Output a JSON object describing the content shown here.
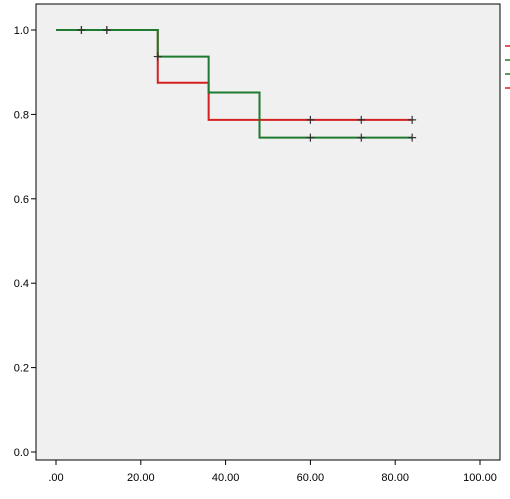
{
  "chart_data": {
    "type": "line",
    "subtype": "kaplan-meier-step",
    "title": "",
    "xlabel": "",
    "ylabel": "",
    "xlim": [
      0,
      100
    ],
    "ylim": [
      0,
      1.0
    ],
    "x_ticks": [
      0,
      20,
      40,
      60,
      80,
      100
    ],
    "x_tick_labels": [
      ".00",
      "20.00",
      "40.00",
      "60.00",
      "80.00",
      "100.00"
    ],
    "y_ticks": [
      0,
      0.2,
      0.4,
      0.6,
      0.8,
      1.0
    ],
    "y_tick_labels": [
      "0.0",
      "0.2",
      "0.4",
      "0.6",
      "0.8",
      "1.0"
    ],
    "grid": false,
    "plot_background": "#f0f0f0",
    "series": [
      {
        "color": "#d42020",
        "steps": [
          [
            0,
            1.0
          ],
          [
            24,
            0.875
          ],
          [
            36,
            0.787
          ],
          [
            84,
            0.787
          ]
        ],
        "censored": [
          [
            6,
            1.0
          ],
          [
            12,
            1.0
          ],
          [
            60,
            0.787
          ],
          [
            72,
            0.787
          ],
          [
            84,
            0.787
          ]
        ]
      },
      {
        "color": "#1e7a2e",
        "steps": [
          [
            0,
            1.0
          ],
          [
            24,
            0.937
          ],
          [
            36,
            0.852
          ],
          [
            48,
            0.745
          ],
          [
            84,
            0.745
          ]
        ],
        "censored": [
          [
            6,
            1.0
          ],
          [
            12,
            1.0
          ],
          [
            24,
            0.937
          ],
          [
            60,
            0.745
          ],
          [
            72,
            0.745
          ],
          [
            84,
            0.745
          ]
        ]
      }
    ],
    "legend": {
      "placement": "top-right-outside",
      "entries": [
        {
          "color": "#d42020"
        },
        {
          "color": "#1e7a2e"
        },
        {
          "color": "#1e7a2e"
        },
        {
          "color": "#d42020"
        }
      ]
    }
  }
}
